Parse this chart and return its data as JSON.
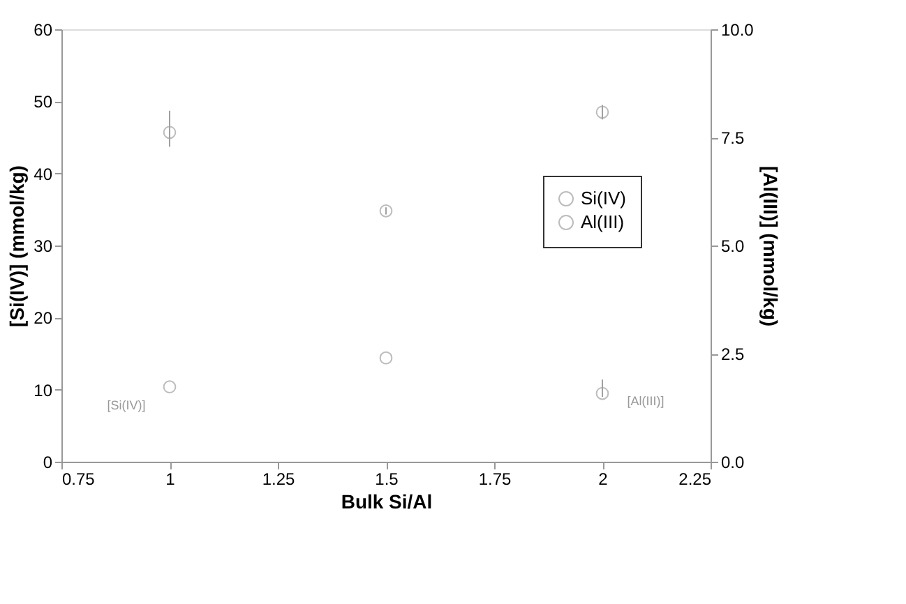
{
  "chart_data": {
    "type": "scatter",
    "xlabel": "Bulk Si/Al",
    "ylabel": "[Si(IV)] (mmol/kg)",
    "y2label": "[Al(III)] (mmol/kg)",
    "x": [
      1,
      1.5,
      2
    ],
    "series": [
      {
        "name": "Si(IV)",
        "color": "#a0a0a0",
        "values": [
          45.7,
          34.8,
          48.5
        ],
        "errors": [
          [
            43.7,
            48.7
          ],
          0.5,
          1
        ]
      },
      {
        "name": "Al(III)",
        "color": "#a0a0a0",
        "axis": "y2",
        "values": [
          1.73,
          2.4,
          1.58
        ],
        "errors": [
          null,
          null,
          [
            1.5,
            1.9
          ]
        ]
      }
    ],
    "xlim": [
      0.75,
      2.25
    ],
    "xticks": [
      0.75,
      1,
      1.25,
      1.5,
      1.75,
      2,
      2.25
    ],
    "ylim": [
      0,
      60
    ],
    "yticks": [
      0,
      10,
      20,
      30,
      40,
      50,
      60
    ],
    "y2lim": [
      0,
      10
    ],
    "y2ticks": [
      {
        "value": 0,
        "label": "0.0"
      },
      {
        "value": 2.5,
        "label": "2.5"
      },
      {
        "value": 5,
        "label": "5.0"
      },
      {
        "value": 7.5,
        "label": "7.5"
      },
      {
        "value": 10,
        "label": "10.0"
      }
    ],
    "annotations": [
      "[Si(IV)]",
      "[Al(III)]"
    ],
    "marker": "circle",
    "legend": "right",
    "grid": false
  }
}
